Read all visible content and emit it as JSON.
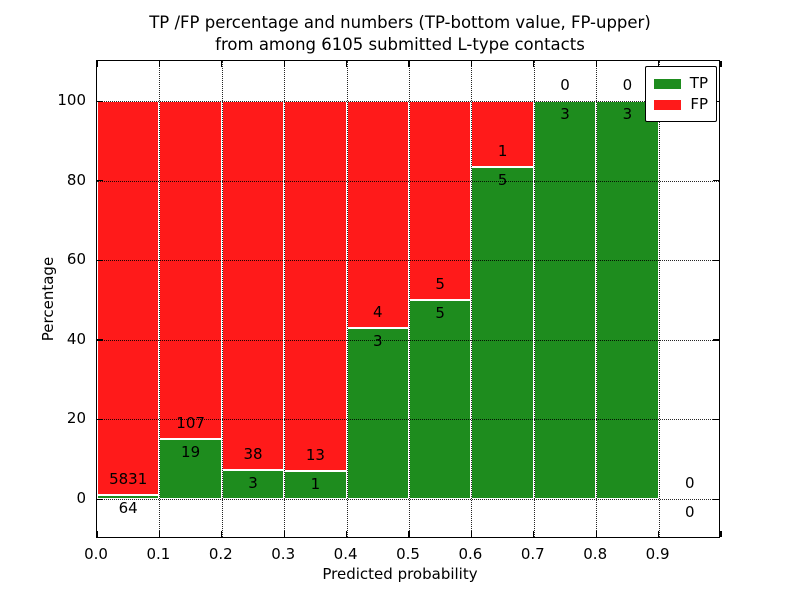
{
  "figure": {
    "title_line1": "TP /FP percentage and numbers (TP-bottom value, FP-upper)",
    "title_line2": "from among 6105 submitted L-type contacts",
    "xlabel": "Predicted probability",
    "ylabel": "Percentage"
  },
  "legend": {
    "position": "upper right",
    "items": [
      {
        "label": "TP",
        "color": "#1e8c1e"
      },
      {
        "label": "FP",
        "color": "#ff1a1a"
      }
    ]
  },
  "chart_data": {
    "type": "bar",
    "subtype": "stacked-percentage-histogram",
    "title": "TP /FP percentage and numbers (TP-bottom value, FP-upper) from among 6105 submitted L-type contacts",
    "xlabel": "Predicted probability",
    "ylabel": "Percentage",
    "total_contacts": 6105,
    "bin_edges": [
      0.0,
      0.1,
      0.2,
      0.3,
      0.4,
      0.5,
      0.6,
      0.7,
      0.8,
      0.9,
      1.0
    ],
    "categories": [
      "0.0-0.1",
      "0.1-0.2",
      "0.2-0.3",
      "0.3-0.4",
      "0.4-0.5",
      "0.5-0.6",
      "0.6-0.7",
      "0.7-0.8",
      "0.8-0.9",
      "0.9-1.0"
    ],
    "series": [
      {
        "name": "TP",
        "color": "#1e8c1e",
        "values": [
          64,
          19,
          3,
          1,
          3,
          5,
          5,
          3,
          3,
          0
        ]
      },
      {
        "name": "FP",
        "color": "#ff1a1a",
        "values": [
          5831,
          107,
          38,
          13,
          4,
          5,
          1,
          0,
          0,
          0
        ]
      }
    ],
    "tp_percent_heights": [
      1.09,
      15.08,
      7.32,
      7.14,
      42.86,
      50.0,
      83.33,
      100.0,
      100.0,
      0.0
    ],
    "ylim": [
      -10,
      110
    ],
    "xlim": [
      0.0,
      1.0
    ],
    "yticks": [
      0,
      20,
      40,
      60,
      80,
      100
    ],
    "xtick_labels": [
      "0.0",
      "0.1",
      "0.2",
      "0.3",
      "0.4",
      "0.5",
      "0.6",
      "0.7",
      "0.8",
      "0.9"
    ],
    "grid": "dotted, drawn above bars",
    "legend_position": "upper right"
  }
}
